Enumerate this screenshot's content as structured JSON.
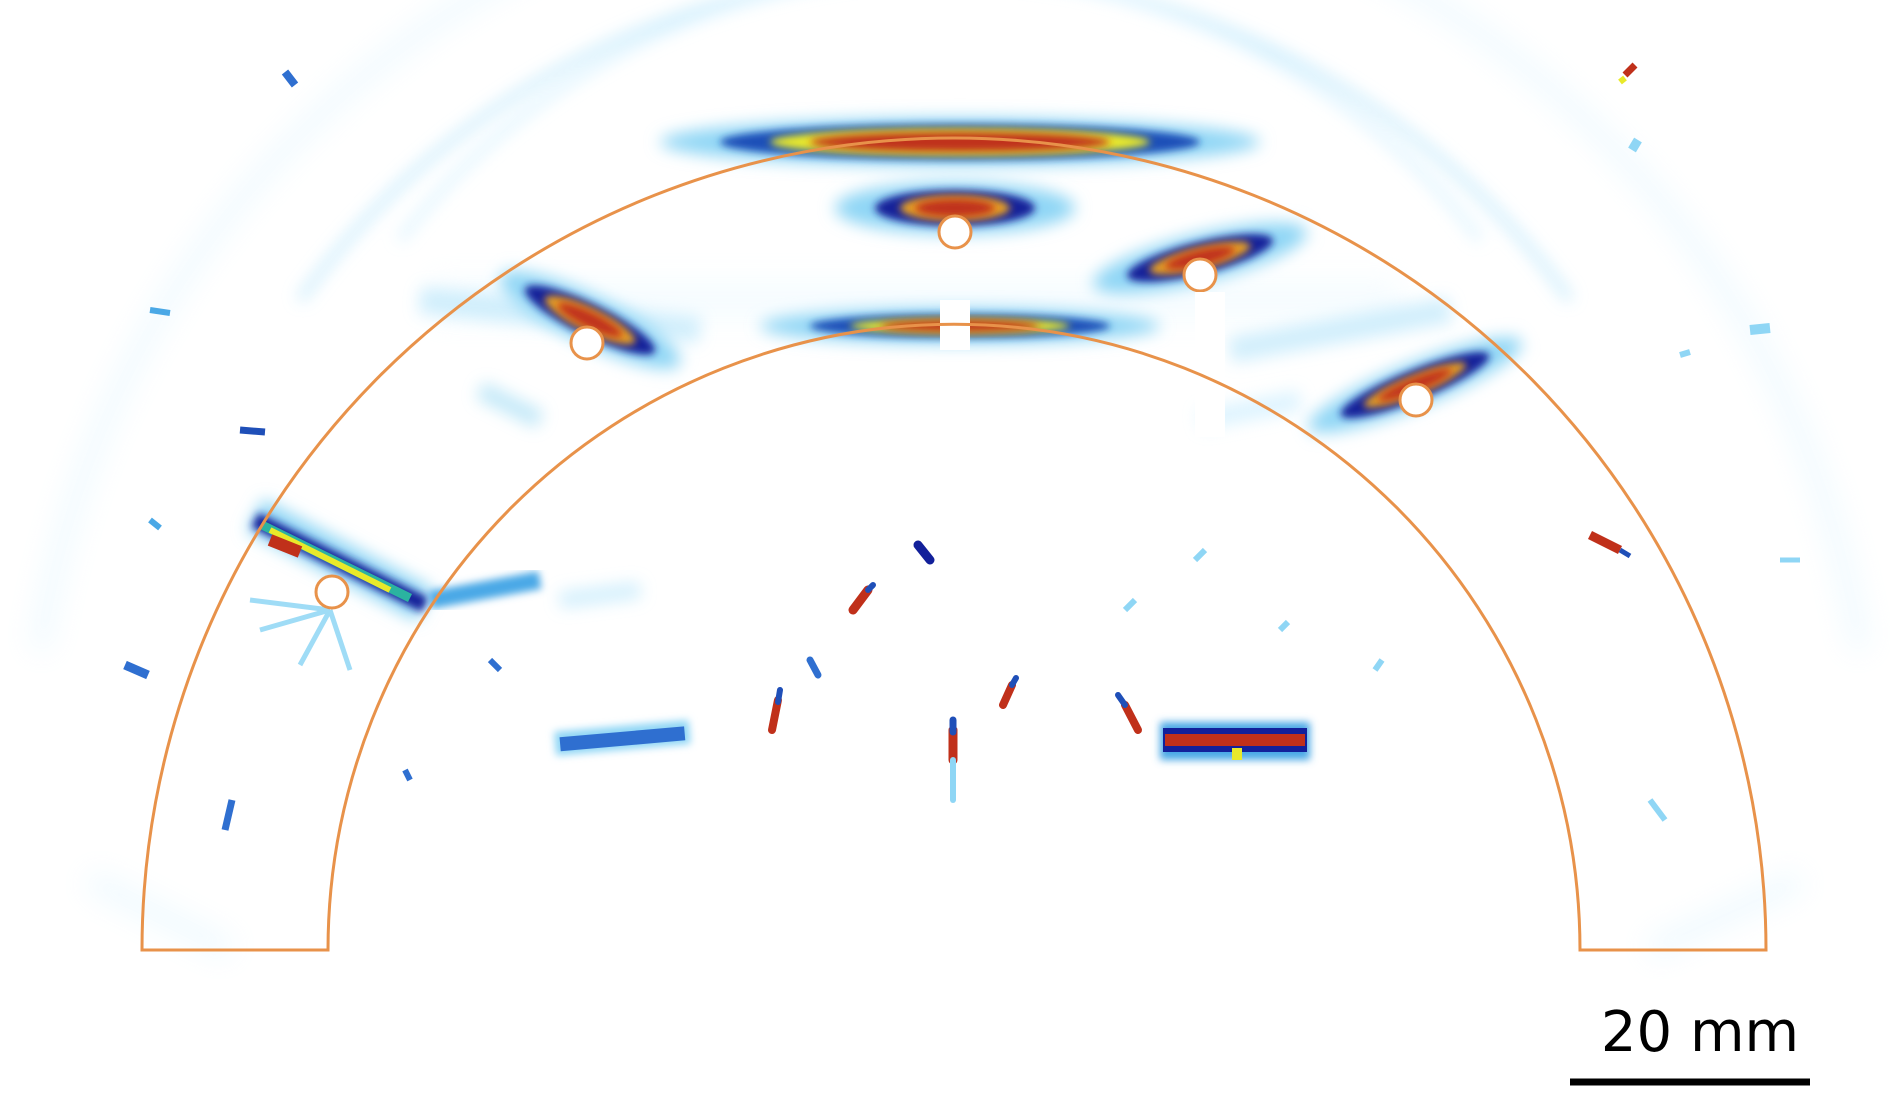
{
  "image": {
    "description_type": "ultrasonic-reconstruction-image",
    "colormap": [
      "#ffffff",
      "#cfefff",
      "#8fd6f5",
      "#4aa8e6",
      "#1f4fb8",
      "#12209a",
      "#2bb3a0",
      "#e9e92a",
      "#f0a020",
      "#d2401e",
      "#b01e14"
    ],
    "outline_color": "#e8924a"
  },
  "scale_bar": {
    "label": "20 mm",
    "color": "#000000"
  }
}
